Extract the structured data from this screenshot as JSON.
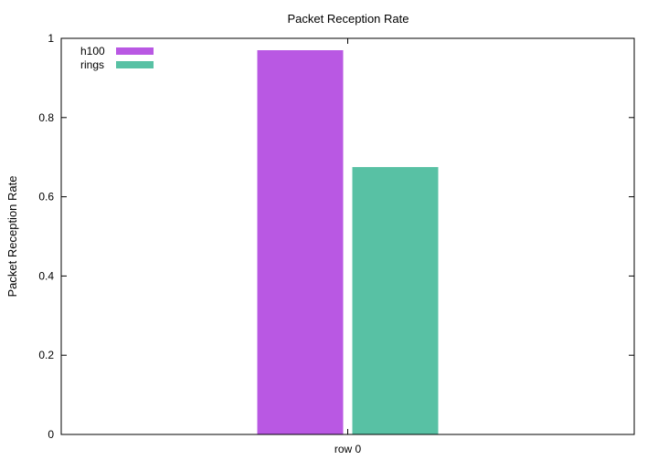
{
  "chart_data": {
    "type": "bar",
    "title": "Packet Reception Rate",
    "xlabel": "",
    "ylabel": "Packet Reception Rate",
    "categories": [
      "row 0"
    ],
    "series": [
      {
        "name": "h100",
        "values": [
          0.97
        ],
        "color": "#b958e3"
      },
      {
        "name": "rings",
        "values": [
          0.675
        ],
        "color": "#58c1a4"
      }
    ],
    "ylim": [
      0,
      1
    ],
    "yticks": [
      0,
      0.2,
      0.4,
      0.6,
      0.8,
      1
    ],
    "ytick_labels": [
      "0",
      "0.2",
      "0.4",
      "0.6",
      "0.8",
      "1"
    ],
    "grid": false,
    "legend_position": "top-left"
  }
}
